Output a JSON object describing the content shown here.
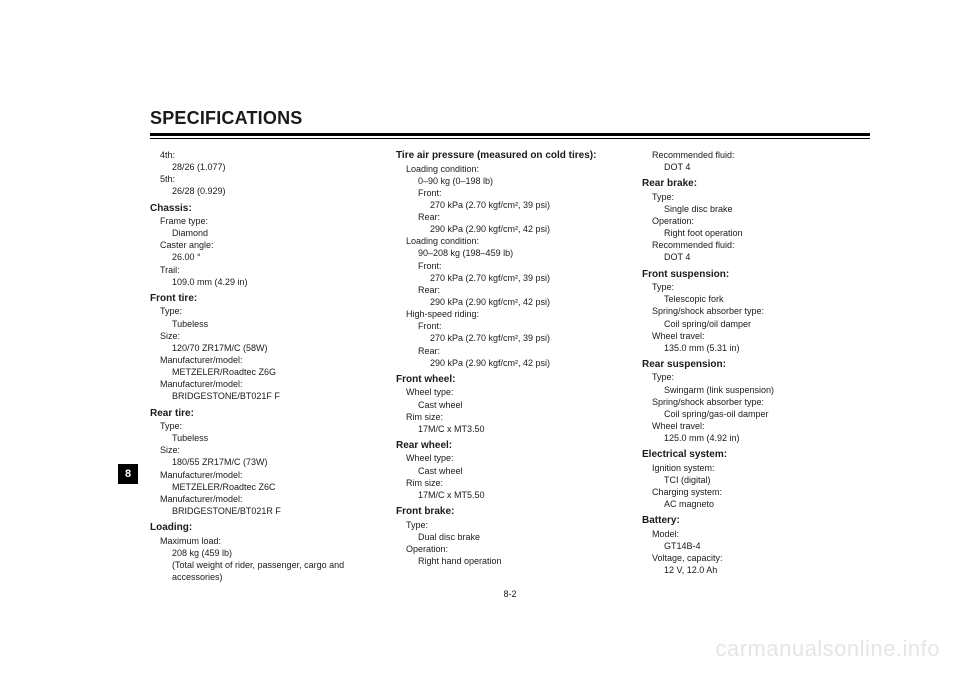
{
  "title": "SPECIFICATIONS",
  "tab": "8",
  "page_num": "8-2",
  "watermark": "carmanualsonline.info",
  "col1": {
    "g0_l1": "4th:",
    "g0_v1": "28/26 (1.077)",
    "g0_l2": "5th:",
    "g0_v2": "26/28 (0.929)",
    "chassis_h": "Chassis:",
    "chassis_l1": "Frame type:",
    "chassis_v1": "Diamond",
    "chassis_l2": "Caster angle:",
    "chassis_v2": "26.00 °",
    "chassis_l3": "Trail:",
    "chassis_v3": "109.0 mm (4.29 in)",
    "ftire_h": "Front tire:",
    "ftire_l1": "Type:",
    "ftire_v1": "Tubeless",
    "ftire_l2": "Size:",
    "ftire_v2": "120/70 ZR17M/C (58W)",
    "ftire_l3": "Manufacturer/model:",
    "ftire_v3": "METZELER/Roadtec Z6G",
    "ftire_l4": "Manufacturer/model:",
    "ftire_v4": "BRIDGESTONE/BT021F F",
    "rtire_h": "Rear tire:",
    "rtire_l1": "Type:",
    "rtire_v1": "Tubeless",
    "rtire_l2": "Size:",
    "rtire_v2": "180/55 ZR17M/C (73W)",
    "rtire_l3": "Manufacturer/model:",
    "rtire_v3": "METZELER/Roadtec Z6C",
    "rtire_l4": "Manufacturer/model:",
    "rtire_v4": "BRIDGESTONE/BT021R F",
    "load_h": "Loading:",
    "load_l1": "Maximum load:",
    "load_v1": "208 kg (459 lb)",
    "load_v2": "(Total weight of rider, passenger, cargo and",
    "load_v3": "accessories)"
  },
  "col2": {
    "press_h": "Tire air pressure (measured on cold tires):",
    "p1_l": "Loading condition:",
    "p1_v": "0–90 kg (0–198 lb)",
    "p1_fl": "Front:",
    "p1_fv": "270 kPa (2.70 kgf/cm², 39 psi)",
    "p1_rl": "Rear:",
    "p1_rv": "290 kPa (2.90 kgf/cm², 42 psi)",
    "p2_l": "Loading condition:",
    "p2_v": "90–208 kg (198–459 lb)",
    "p2_fl": "Front:",
    "p2_fv": "270 kPa (2.70 kgf/cm², 39 psi)",
    "p2_rl": "Rear:",
    "p2_rv": "290 kPa (2.90 kgf/cm², 42 psi)",
    "p3_l": "High-speed riding:",
    "p3_fl": "Front:",
    "p3_fv": "270 kPa (2.70 kgf/cm², 39 psi)",
    "p3_rl": "Rear:",
    "p3_rv": "290 kPa (2.90 kgf/cm², 42 psi)",
    "fwheel_h": "Front wheel:",
    "fwheel_l1": "Wheel type:",
    "fwheel_v1": "Cast wheel",
    "fwheel_l2": "Rim size:",
    "fwheel_v2": "17M/C x MT3.50",
    "rwheel_h": "Rear wheel:",
    "rwheel_l1": "Wheel type:",
    "rwheel_v1": "Cast wheel",
    "rwheel_l2": "Rim size:",
    "rwheel_v2": "17M/C x MT5.50",
    "fbrake_h": "Front brake:",
    "fbrake_l1": "Type:",
    "fbrake_v1": "Dual disc brake",
    "fbrake_l2": "Operation:",
    "fbrake_v2": "Right hand operation"
  },
  "col3": {
    "rf_l": "Recommended fluid:",
    "rf_v": "DOT 4",
    "rbrake_h": "Rear brake:",
    "rbrake_l1": "Type:",
    "rbrake_v1": "Single disc brake",
    "rbrake_l2": "Operation:",
    "rbrake_v2": "Right foot operation",
    "rbrake_l3": "Recommended fluid:",
    "rbrake_v3": "DOT 4",
    "fsusp_h": "Front suspension:",
    "fsusp_l1": "Type:",
    "fsusp_v1": "Telescopic fork",
    "fsusp_l2": "Spring/shock absorber type:",
    "fsusp_v2": "Coil spring/oil damper",
    "fsusp_l3": "Wheel travel:",
    "fsusp_v3": "135.0 mm (5.31 in)",
    "rsusp_h": "Rear suspension:",
    "rsusp_l1": "Type:",
    "rsusp_v1": "Swingarm (link suspension)",
    "rsusp_l2": "Spring/shock absorber type:",
    "rsusp_v2": "Coil spring/gas-oil damper",
    "rsusp_l3": "Wheel travel:",
    "rsusp_v3": "125.0 mm (4.92 in)",
    "elec_h": "Electrical system:",
    "elec_l1": "Ignition system:",
    "elec_v1": "TCI (digital)",
    "elec_l2": "Charging system:",
    "elec_v2": "AC magneto",
    "batt_h": "Battery:",
    "batt_l1": "Model:",
    "batt_v1": "GT14B-4",
    "batt_l2": "Voltage, capacity:",
    "batt_v2": "12 V, 12.0 Ah"
  }
}
